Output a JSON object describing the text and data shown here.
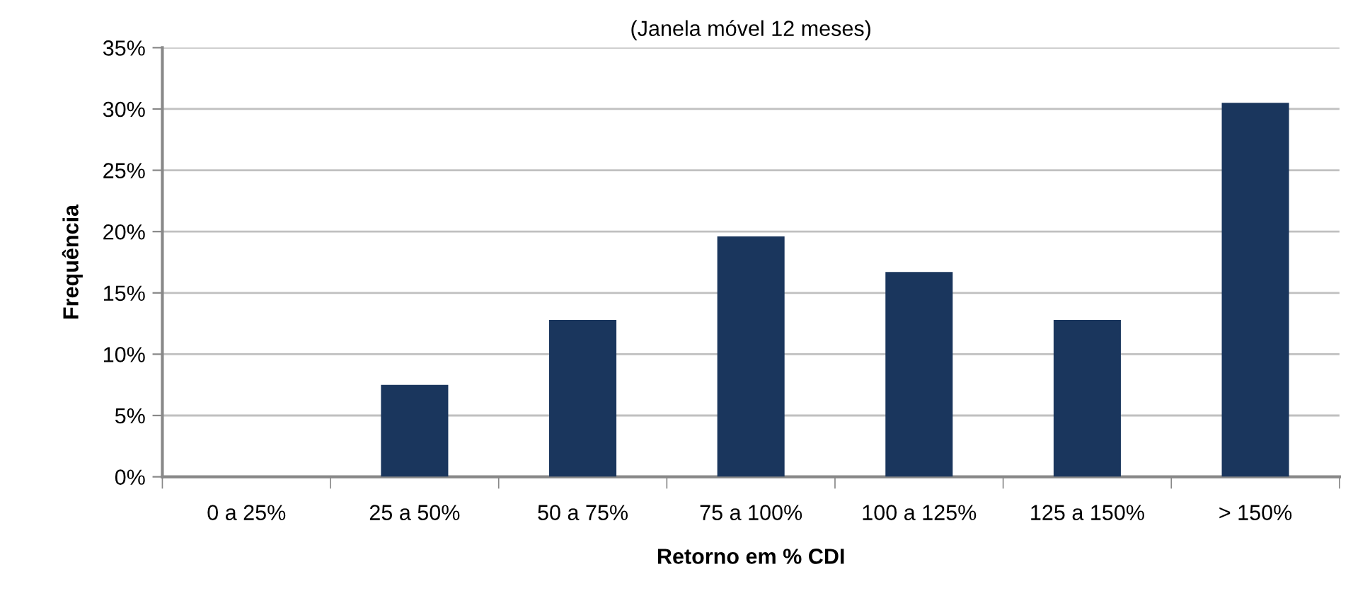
{
  "chart_data": {
    "type": "bar",
    "subtitle": "(Janela móvel 12 meses)",
    "xlabel": "Retorno em % CDI",
    "ylabel": "Frequência",
    "categories": [
      "0 a 25%",
      "25 a 50%",
      "50 a 75%",
      "75 a 100%",
      "100 a 125%",
      "125 a 150%",
      "> 150%"
    ],
    "values": [
      0,
      7.5,
      12.8,
      19.6,
      16.7,
      12.8,
      30.5
    ],
    "color": "#1a365d",
    "ylim": [
      0,
      35
    ],
    "yticks": [
      {
        "value": 0,
        "label": "0%"
      },
      {
        "value": 5,
        "label": "5%"
      },
      {
        "value": 10,
        "label": "10%"
      },
      {
        "value": 15,
        "label": "15%"
      },
      {
        "value": 20,
        "label": "20%"
      },
      {
        "value": 25,
        "label": "25%"
      },
      {
        "value": 30,
        "label": "30%"
      },
      {
        "value": 35,
        "label": "35%"
      }
    ],
    "grid": "y",
    "legend": false
  }
}
